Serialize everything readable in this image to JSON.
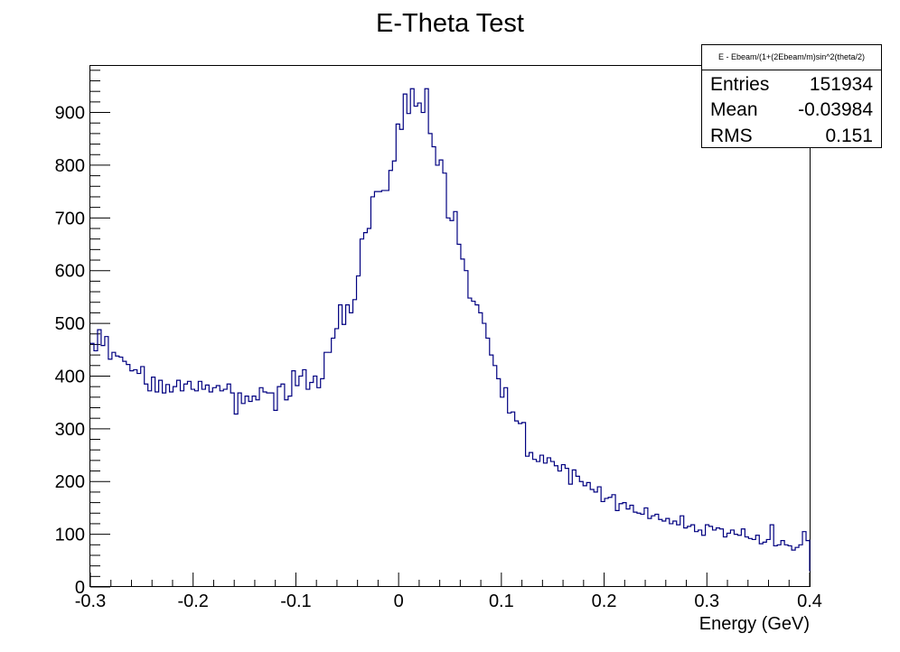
{
  "chart_data": {
    "type": "histogram",
    "title": "E-Theta Test",
    "xlabel": "Energy (GeV)",
    "ylabel": "",
    "xlim": [
      -0.3,
      0.4
    ],
    "ylim": [
      0,
      990
    ],
    "grid": false,
    "line_color": "#000080",
    "bin_width": 0.0035,
    "x_ticks": [
      "-0.3",
      "-0.2",
      "-0.1",
      "0",
      "0.1",
      "0.2",
      "0.3",
      "0.4"
    ],
    "x_tick_values": [
      -0.3,
      -0.2,
      -0.1,
      0,
      0.1,
      0.2,
      0.3,
      0.4
    ],
    "y_ticks": [
      "0",
      "100",
      "200",
      "300",
      "400",
      "500",
      "600",
      "700",
      "800",
      "900"
    ],
    "y_tick_values": [
      0,
      100,
      200,
      300,
      400,
      500,
      600,
      700,
      800,
      900
    ],
    "values": [
      462,
      448,
      488,
      458,
      475,
      432,
      445,
      438,
      436,
      428,
      422,
      410,
      412,
      405,
      418,
      385,
      372,
      398,
      370,
      392,
      368,
      384,
      370,
      380,
      392,
      372,
      385,
      390,
      375,
      372,
      390,
      375,
      383,
      370,
      378,
      382,
      372,
      375,
      385,
      368,
      328,
      368,
      348,
      362,
      352,
      362,
      355,
      378,
      370,
      368,
      368,
      335,
      380,
      385,
      355,
      362,
      410,
      382,
      400,
      412,
      375,
      388,
      400,
      378,
      395,
      445,
      445,
      472,
      490,
      535,
      498,
      535,
      520,
      545,
      590,
      660,
      672,
      680,
      740,
      750,
      750,
      752,
      752,
      790,
      808,
      878,
      868,
      935,
      898,
      945,
      912,
      918,
      900,
      945,
      860,
      835,
      800,
      810,
      785,
      700,
      695,
      712,
      650,
      622,
      600,
      548,
      542,
      535,
      520,
      500,
      472,
      440,
      420,
      395,
      360,
      378,
      330,
      332,
      315,
      310,
      312,
      248,
      255,
      242,
      238,
      250,
      235,
      245,
      238,
      230,
      220,
      232,
      225,
      195,
      222,
      210,
      200,
      192,
      198,
      185,
      180,
      190,
      162,
      168,
      170,
      175,
      145,
      158,
      160,
      148,
      155,
      142,
      140,
      138,
      150,
      130,
      135,
      138,
      128,
      125,
      130,
      120,
      125,
      118,
      135,
      112,
      115,
      118,
      105,
      108,
      98,
      118,
      115,
      108,
      112,
      110,
      95,
      102,
      108,
      100,
      98,
      110,
      95,
      92,
      90,
      98,
      82,
      85,
      90,
      118,
      78,
      80,
      88,
      80,
      78,
      70,
      75,
      80,
      105,
      88,
      90,
      72,
      78,
      68,
      72,
      60,
      68,
      58,
      62,
      55,
      48,
      52,
      50,
      55,
      45,
      42,
      48,
      40,
      45,
      42,
      35,
      45,
      52,
      42,
      30,
      42,
      50,
      40,
      35,
      45,
      40,
      40
    ]
  },
  "stats_box": {
    "header": "E - Ebeam/(1+(2Ebeam/m)sin^2(theta/2)",
    "rows": [
      {
        "label": "Entries",
        "value": "151934"
      },
      {
        "label": "Mean",
        "value": "-0.03984"
      },
      {
        "label": "RMS",
        "value": "0.151"
      }
    ]
  }
}
